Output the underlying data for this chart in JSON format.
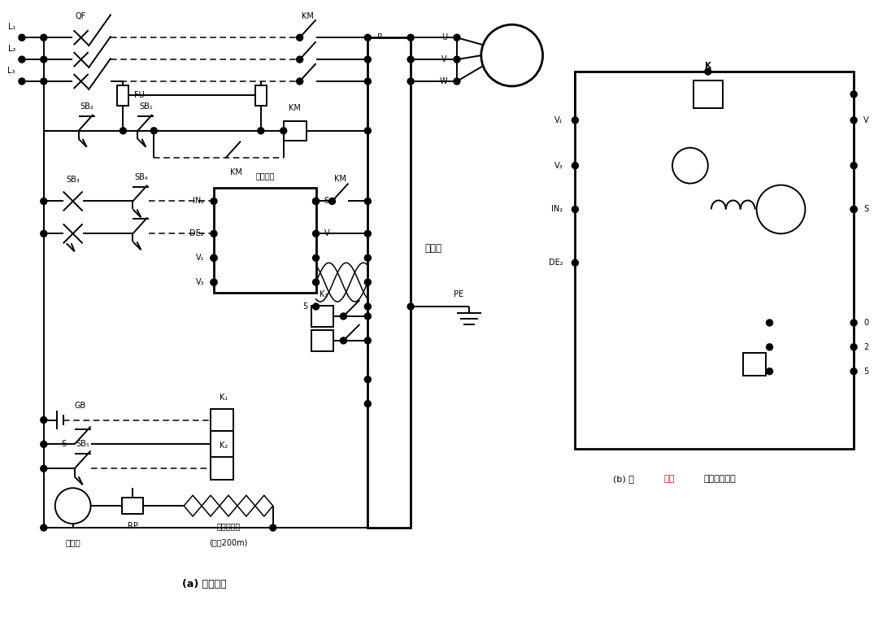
{
  "figsize": [
    10.91,
    7.65
  ],
  "dpi": 100,
  "lw": 1.4,
  "lw_thick": 2.0,
  "lw_thin": 1.1,
  "fs_small": 6.5,
  "fs_med": 7.5,
  "fs_large": 9,
  "label_a": "(a) 控制电路",
  "label_b_black1": "(b) 远",
  "label_b_red": "操作",
  "label_b_black2": "盘的内部结构",
  "text_inv": "变频器",
  "text_panel": "远操作盘",
  "text_shield": "屏蔽绞合线",
  "text_maxlen": "(最长200m)",
  "text_pinlv": "频率表"
}
